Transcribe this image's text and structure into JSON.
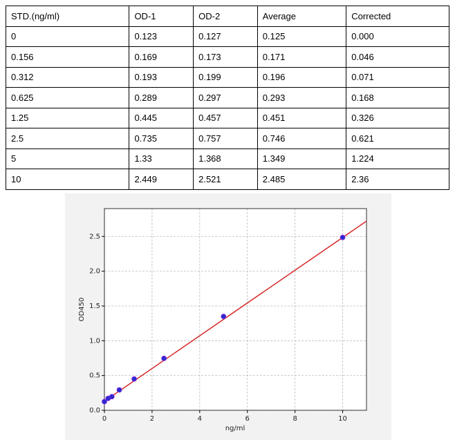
{
  "table": {
    "header": [
      "STD.(ng/ml)",
      "OD-1",
      "OD-2",
      "Average",
      "Corrected"
    ],
    "rows": [
      [
        "0",
        "0.123",
        "0.127",
        "0.125",
        "0.000"
      ],
      [
        "0.156",
        "0.169",
        "0.173",
        "0.171",
        "0.046"
      ],
      [
        "0.312",
        "0.193",
        "0.199",
        "0.196",
        "0.071"
      ],
      [
        "0.625",
        "0.289",
        "0.297",
        "0.293",
        "0.168"
      ],
      [
        "1.25",
        "0.445",
        "0.457",
        "0.451",
        "0.326"
      ],
      [
        "2.5",
        "0.735",
        "0.757",
        "0.746",
        "0.621"
      ],
      [
        "5",
        "1.33",
        "1.368",
        "1.349",
        "1.224"
      ],
      [
        "10",
        "2.449",
        "2.521",
        "2.485",
        "2.36"
      ]
    ]
  },
  "chart_data": {
    "type": "scatter",
    "xlabel": "ng/ml",
    "ylabel": "OD450",
    "x": [
      0,
      0.156,
      0.312,
      0.625,
      1.25,
      2.5,
      5,
      10
    ],
    "values": [
      0.125,
      0.171,
      0.196,
      0.293,
      0.451,
      0.746,
      1.349,
      2.485
    ],
    "color": "#2b2bd0",
    "fit_line": {
      "x": [
        0,
        11
      ],
      "values": [
        0.13,
        2.72
      ],
      "color": "#d62728"
    },
    "xlim": [
      0,
      11
    ],
    "ylim": [
      0,
      2.9
    ],
    "xticks": [
      0,
      2,
      4,
      6,
      8,
      10
    ],
    "yticks": [
      {
        "value": 0,
        "label": "0.0"
      },
      0.5,
      {
        "value": 1,
        "label": "1.0"
      },
      1.5,
      {
        "value": 2,
        "label": "2.0"
      },
      2.5
    ],
    "grid": true
  }
}
